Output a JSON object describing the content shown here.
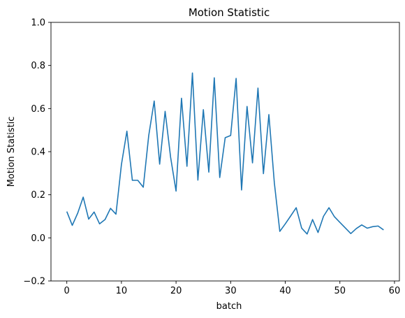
{
  "chart_data": {
    "type": "line",
    "title": "Motion Statistic",
    "xlabel": "batch",
    "ylabel": "Motion Statistic",
    "xlim": [
      -2.9,
      60.9
    ],
    "ylim": [
      -0.2,
      1.0
    ],
    "x_ticks": [
      0,
      10,
      20,
      30,
      40,
      50,
      60
    ],
    "x_tick_labels": [
      "0",
      "10",
      "20",
      "30",
      "40",
      "50",
      "60"
    ],
    "y_ticks": [
      -0.2,
      0.0,
      0.2,
      0.4,
      0.6,
      0.8,
      1.0
    ],
    "y_tick_labels": [
      "−0.2",
      "0.0",
      "0.2",
      "0.4",
      "0.6",
      "0.8",
      "1.0"
    ],
    "grid": false,
    "legend": "none",
    "color": "#1f77b4",
    "series": [
      {
        "x": [
          0,
          1,
          2,
          3,
          4,
          5,
          6,
          7,
          8,
          9,
          10,
          11,
          12,
          13,
          14,
          15,
          16,
          17,
          18,
          19,
          20,
          21,
          22,
          23,
          24,
          25,
          26,
          27,
          28,
          29,
          30,
          31,
          32,
          33,
          34,
          35,
          36,
          37,
          38,
          39,
          40,
          41,
          42,
          43,
          44,
          45,
          46,
          47,
          48,
          49,
          50,
          51,
          52,
          53,
          54,
          55,
          56,
          57,
          58
        ],
        "values": [
          0.122,
          0.058,
          0.115,
          0.189,
          0.087,
          0.12,
          0.065,
          0.085,
          0.137,
          0.11,
          0.34,
          0.495,
          0.267,
          0.267,
          0.235,
          0.475,
          0.635,
          0.342,
          0.587,
          0.375,
          0.217,
          0.648,
          0.332,
          0.765,
          0.268,
          0.595,
          0.305,
          0.743,
          0.28,
          0.465,
          0.475,
          0.74,
          0.222,
          0.61,
          0.348,
          0.695,
          0.298,
          0.572,
          0.255,
          0.03,
          0.065,
          0.102,
          0.14,
          0.045,
          0.018,
          0.085,
          0.025,
          0.1,
          0.14,
          0.098,
          0.072,
          0.046,
          0.02,
          0.043,
          0.06,
          0.045,
          0.052,
          0.055,
          0.037
        ]
      }
    ]
  }
}
